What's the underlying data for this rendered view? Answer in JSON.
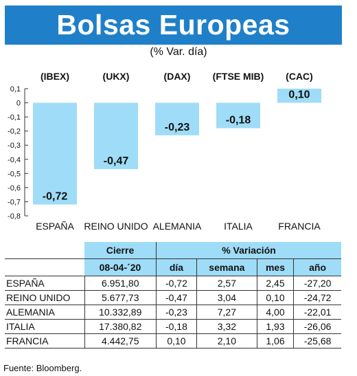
{
  "header": {
    "title": "Bolsas Europeas",
    "subtitle": "(% Var. día)"
  },
  "colors": {
    "header_bg": "#1f80c9",
    "bar": "#9fdcf7",
    "table_header": "#9fdcf7"
  },
  "chart_data": {
    "type": "bar",
    "title": "Bolsas Europeas",
    "subtitle": "(% Var. día)",
    "categories": [
      "ESPAÑA",
      "REINO UNIDO",
      "ALEMANIA",
      "ITALIA",
      "FRANCIA"
    ],
    "indices": [
      "(IBEX)",
      "(UKX)",
      "(DAX)",
      "(FTSE MIB)",
      "(CAC)"
    ],
    "values": [
      -0.72,
      -0.47,
      -0.23,
      -0.18,
      0.1
    ],
    "value_labels": [
      "-0,72",
      "-0,47",
      "-0,23",
      "-0,18",
      "0,10"
    ],
    "yticks": [
      0.1,
      0,
      -0.1,
      -0.2,
      -0.3,
      -0.4,
      -0.5,
      -0.6,
      -0.7,
      -0.8
    ],
    "ytick_labels": [
      "0,1",
      "0",
      "-0,1",
      "-0,2",
      "-0,3",
      "-0,4",
      "-0,5",
      "-0,6",
      "-0,7",
      "-0,8"
    ],
    "ylim": [
      -0.8,
      0.1
    ],
    "grid": false,
    "legend": "none"
  },
  "table": {
    "group_headers": {
      "cierre": "Cierre",
      "variacion": "% Variación"
    },
    "date_label": "08-04-´20",
    "columns": [
      "día",
      "semana",
      "mes",
      "año"
    ],
    "rows": [
      {
        "country": "ESPAÑA",
        "cierre": "6.951,80",
        "dia": "-0,72",
        "semana": "2,57",
        "mes": "2,45",
        "anio": "-27,20"
      },
      {
        "country": "REINO UNIDO",
        "cierre": "5.677,73",
        "dia": "-0,47",
        "semana": "3,04",
        "mes": "0,10",
        "anio": "-24,72"
      },
      {
        "country": "ALEMANIA",
        "cierre": "10.332,89",
        "dia": "-0,23",
        "semana": "7,27",
        "mes": "4,00",
        "anio": "-22,01"
      },
      {
        "country": "ITALIA",
        "cierre": "17.380,82",
        "dia": "-0,18",
        "semana": "3,32",
        "mes": "1,93",
        "anio": "-26,06"
      },
      {
        "country": "FRANCIA",
        "cierre": "4.442,75",
        "dia": "0,10",
        "semana": "2,10",
        "mes": "1,06",
        "anio": "-25,68"
      }
    ]
  },
  "source": "Fuente: Bloomberg."
}
